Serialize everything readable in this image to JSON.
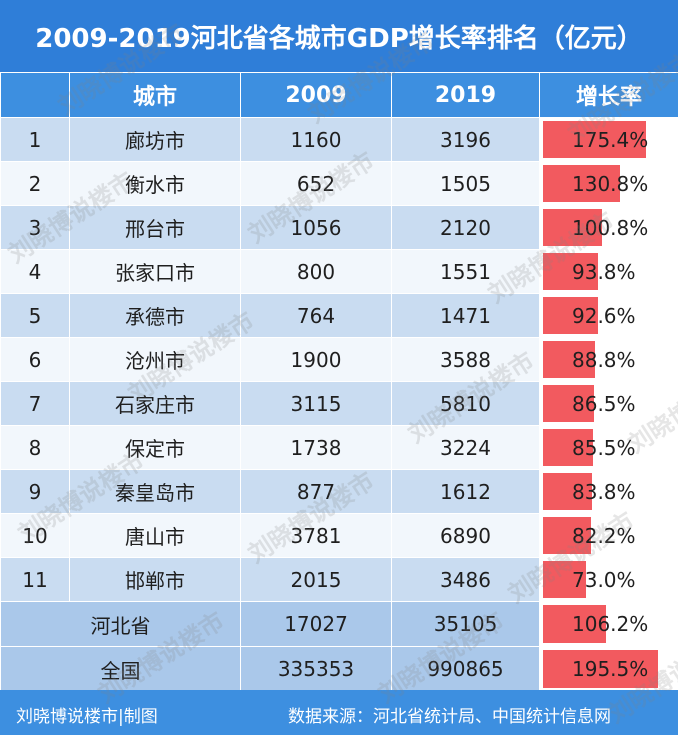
{
  "title": "2009-2019河北省各城市GDP增长率排名（亿元）",
  "headers": {
    "rank": "",
    "city": "城市",
    "y2009": "2009",
    "y2019": "2019",
    "growth": "增长率"
  },
  "rows": [
    {
      "rank": "1",
      "city": "廊坊市",
      "v2009": "1160",
      "v2019": "3196",
      "growth": "175.4%",
      "growth_value": 175.4
    },
    {
      "rank": "2",
      "city": "衡水市",
      "v2009": "652",
      "v2019": "1505",
      "growth": "130.8%",
      "growth_value": 130.8
    },
    {
      "rank": "3",
      "city": "邢台市",
      "v2009": "1056",
      "v2019": "2120",
      "growth": "100.8%",
      "growth_value": 100.8
    },
    {
      "rank": "4",
      "city": "张家口市",
      "v2009": "800",
      "v2019": "1551",
      "growth": "93.8%",
      "growth_value": 93.8
    },
    {
      "rank": "5",
      "city": "承德市",
      "v2009": "764",
      "v2019": "1471",
      "growth": "92.6%",
      "growth_value": 92.6
    },
    {
      "rank": "6",
      "city": "沧州市",
      "v2009": "1900",
      "v2019": "3588",
      "growth": "88.8%",
      "growth_value": 88.8
    },
    {
      "rank": "7",
      "city": "石家庄市",
      "v2009": "3115",
      "v2019": "5810",
      "growth": "86.5%",
      "growth_value": 86.5
    },
    {
      "rank": "8",
      "city": "保定市",
      "v2009": "1738",
      "v2019": "3224",
      "growth": "85.5%",
      "growth_value": 85.5
    },
    {
      "rank": "9",
      "city": "秦皇岛市",
      "v2009": "877",
      "v2019": "1612",
      "growth": "83.8%",
      "growth_value": 83.8
    },
    {
      "rank": "10",
      "city": "唐山市",
      "v2009": "3781",
      "v2019": "6890",
      "growth": "82.2%",
      "growth_value": 82.2
    },
    {
      "rank": "11",
      "city": "邯郸市",
      "v2009": "2015",
      "v2019": "3486",
      "growth": "73.0%",
      "growth_value": 73.0
    }
  ],
  "totals": [
    {
      "name": "河北省",
      "v2009": "17027",
      "v2019": "35105",
      "growth": "106.2%",
      "growth_value": 106.2
    },
    {
      "name": "全国",
      "v2009": "335353",
      "v2019": "990865",
      "growth": "195.5%",
      "growth_value": 195.5
    }
  ],
  "growth_bar_max": 200,
  "footer": {
    "left": "刘晓博说楼市|制图",
    "right": "数据来源：河北省统计局、中国统计信息网"
  },
  "watermark": "刘晓博说楼市",
  "colors": {
    "header": "#3d8fe0",
    "title": "#2f7ed8",
    "row_light": "#c9dcf1",
    "row_white": "#f2f7fc",
    "total": "#aac8ea",
    "bar": "#f25a5f"
  }
}
